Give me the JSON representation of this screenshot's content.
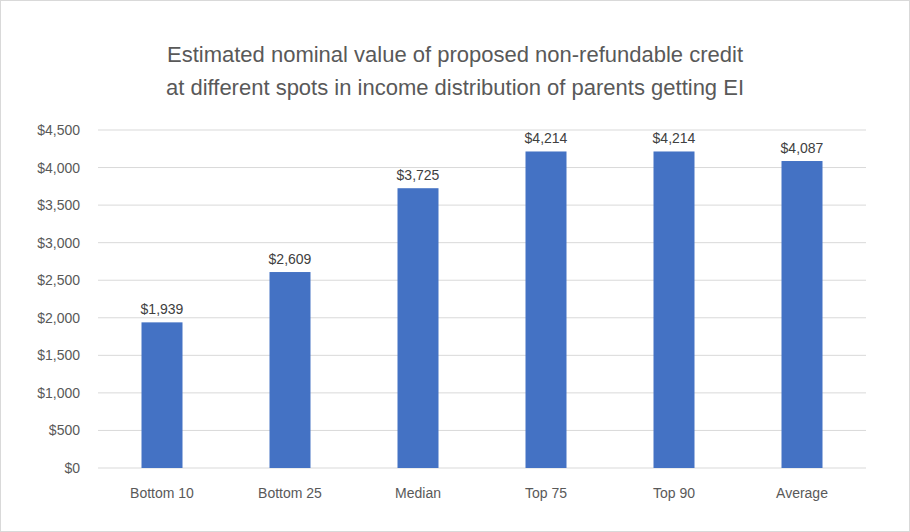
{
  "chart_data": {
    "type": "bar",
    "title": [
      "Estimated nominal value of proposed non-refundable credit",
      "at different spots in income distribution of parents getting EI"
    ],
    "categories": [
      "Bottom 10",
      "Bottom 25",
      "Median",
      "Top 75",
      "Top 90",
      "Average"
    ],
    "values": [
      1939,
      2609,
      3725,
      4214,
      4214,
      4087
    ],
    "value_labels": [
      "$1,939",
      "$2,609",
      "$3,725",
      "$4,214",
      "$4,214",
      "$4,087"
    ],
    "color": "#4472c4",
    "ylim": [
      0,
      4500
    ],
    "yticks": [
      {
        "value": 0,
        "label": "$0"
      },
      {
        "value": 500,
        "label": "$500"
      },
      {
        "value": 1000,
        "label": "$1,000"
      },
      {
        "value": 1500,
        "label": "$1,500"
      },
      {
        "value": 2000,
        "label": "$2,000"
      },
      {
        "value": 2500,
        "label": "$2,500"
      },
      {
        "value": 3000,
        "label": "$3,000"
      },
      {
        "value": 3500,
        "label": "$3,500"
      },
      {
        "value": 4000,
        "label": "$4,000"
      },
      {
        "value": 4500,
        "label": "$4,500"
      }
    ],
    "grid": true,
    "data_labels": true
  }
}
